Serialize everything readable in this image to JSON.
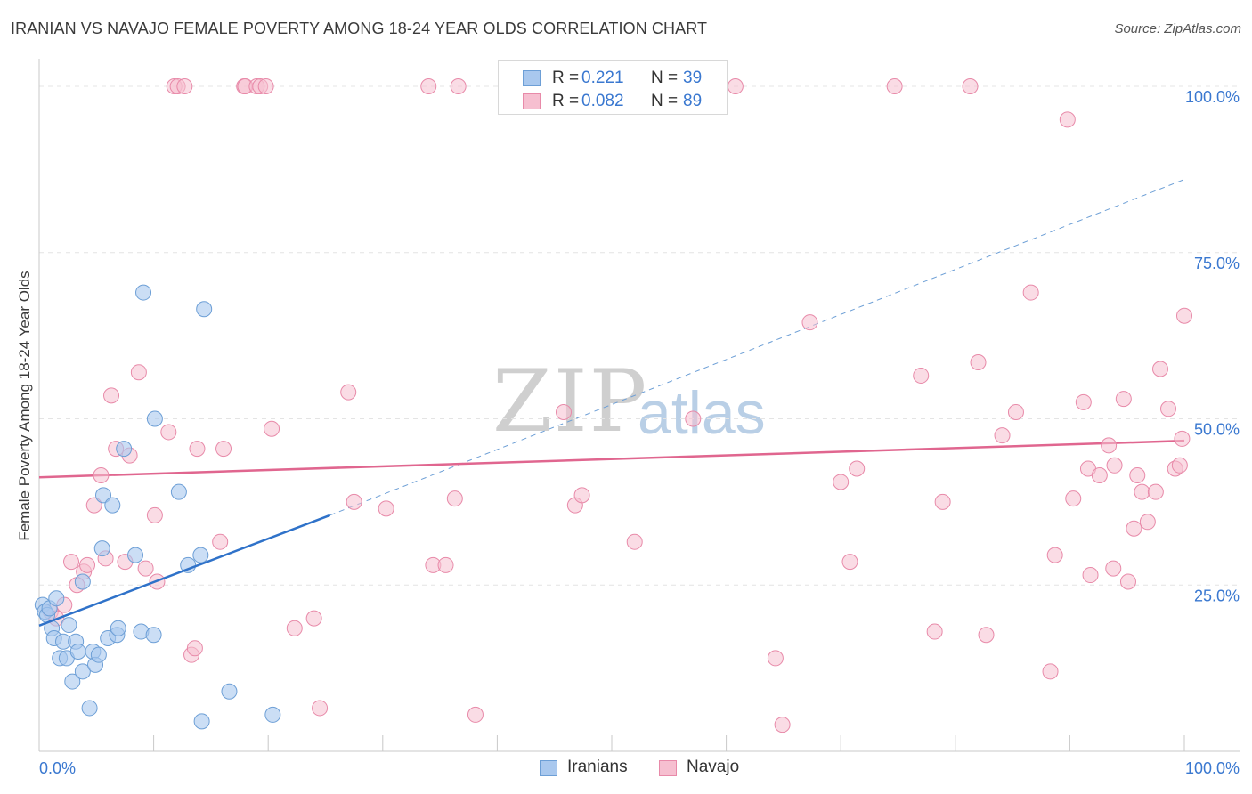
{
  "title": "IRANIAN VS NAVAJO FEMALE POVERTY AMONG 18-24 YEAR OLDS CORRELATION CHART",
  "source": "Source: ZipAtlas.com",
  "watermark": {
    "zip": "ZIP",
    "atlas": "atlas"
  },
  "legend_top": {
    "rows": [
      {
        "r_label": "R =",
        "r_value": "0.221",
        "n_label": "N =",
        "n_value": "39"
      },
      {
        "r_label": "R =",
        "r_value": "0.082",
        "n_label": "N =",
        "n_value": "89"
      }
    ]
  },
  "legend_bottom": {
    "items": [
      "Iranians",
      "Navajo"
    ]
  },
  "colors": {
    "iranian_fill": "#a9c8ee",
    "iranian_stroke": "#6d9fd6",
    "iranian_line": "#2f72c9",
    "navajo_fill": "#f6bfd0",
    "navajo_stroke": "#e88aa9",
    "navajo_line": "#e0668f",
    "value_text": "#3a78d0",
    "grid": "#e4e4e4"
  },
  "chart_data": {
    "type": "scatter",
    "title": "IRANIAN VS NAVAJO FEMALE POVERTY AMONG 18-24 YEAR OLDS CORRELATION CHART",
    "xlabel": "",
    "ylabel": "Female Poverty Among 18-24 Year Olds",
    "xlim": [
      0,
      100
    ],
    "ylim": [
      0,
      100
    ],
    "x_tick_labels": [
      "0.0%",
      "100.0%"
    ],
    "y_tick_labels": [
      "25.0%",
      "50.0%",
      "75.0%",
      "100.0%"
    ],
    "y_ticks": [
      25,
      50,
      75,
      100
    ],
    "legend_position": "top-center",
    "series": [
      {
        "name": "Iranians",
        "R": 0.221,
        "N": 39,
        "points": [
          [
            0.3,
            22.0
          ],
          [
            0.5,
            21.0
          ],
          [
            0.7,
            20.5
          ],
          [
            0.9,
            21.5
          ],
          [
            1.1,
            18.5
          ],
          [
            1.3,
            17.0
          ],
          [
            1.5,
            23.0
          ],
          [
            1.8,
            14.0
          ],
          [
            2.1,
            16.5
          ],
          [
            2.4,
            14.0
          ],
          [
            2.6,
            19.0
          ],
          [
            2.9,
            10.5
          ],
          [
            3.2,
            16.5
          ],
          [
            3.4,
            15.0
          ],
          [
            3.8,
            25.5
          ],
          [
            3.8,
            12.0
          ],
          [
            4.4,
            6.5
          ],
          [
            4.7,
            15.0
          ],
          [
            4.9,
            13.0
          ],
          [
            5.2,
            14.5
          ],
          [
            5.5,
            30.5
          ],
          [
            5.6,
            38.5
          ],
          [
            6.0,
            17.0
          ],
          [
            6.4,
            37.0
          ],
          [
            6.8,
            17.5
          ],
          [
            6.9,
            18.5
          ],
          [
            7.4,
            45.5
          ],
          [
            8.4,
            29.5
          ],
          [
            8.9,
            18.0
          ],
          [
            9.1,
            69.0
          ],
          [
            10.0,
            17.5
          ],
          [
            10.1,
            50.0
          ],
          [
            12.2,
            39.0
          ],
          [
            13.0,
            28.0
          ],
          [
            14.1,
            29.5
          ],
          [
            14.2,
            4.5
          ],
          [
            14.4,
            66.5
          ],
          [
            16.6,
            9.0
          ],
          [
            20.4,
            5.5
          ]
        ],
        "trend": {
          "x": [
            0,
            25.4
          ],
          "y": [
            18.9,
            35.5
          ],
          "extended_x": [
            25.4,
            100
          ],
          "extended_y": [
            35.5,
            86.0
          ]
        }
      },
      {
        "name": "Navajo",
        "R": 0.082,
        "N": 89,
        "points": [
          [
            1.0,
            21.0
          ],
          [
            1.5,
            20.0
          ],
          [
            2.2,
            22.0
          ],
          [
            2.8,
            28.5
          ],
          [
            3.3,
            25.0
          ],
          [
            3.9,
            27.0
          ],
          [
            4.2,
            28.0
          ],
          [
            4.8,
            37.0
          ],
          [
            5.4,
            41.5
          ],
          [
            5.8,
            29.0
          ],
          [
            6.3,
            53.5
          ],
          [
            6.7,
            45.5
          ],
          [
            7.5,
            28.5
          ],
          [
            7.9,
            44.5
          ],
          [
            8.7,
            57.0
          ],
          [
            9.3,
            27.5
          ],
          [
            10.1,
            35.5
          ],
          [
            10.3,
            25.5
          ],
          [
            11.3,
            48.0
          ],
          [
            11.8,
            100.0
          ],
          [
            12.1,
            100.0
          ],
          [
            12.7,
            100.0
          ],
          [
            13.3,
            14.5
          ],
          [
            13.6,
            15.5
          ],
          [
            13.8,
            45.5
          ],
          [
            15.8,
            31.5
          ],
          [
            16.1,
            45.5
          ],
          [
            17.9,
            100.0
          ],
          [
            18.0,
            100.0
          ],
          [
            19.0,
            100.0
          ],
          [
            19.3,
            100.0
          ],
          [
            19.8,
            100.0
          ],
          [
            20.3,
            48.5
          ],
          [
            22.3,
            18.5
          ],
          [
            24.0,
            20.0
          ],
          [
            24.5,
            6.5
          ],
          [
            27.0,
            54.0
          ],
          [
            27.5,
            37.5
          ],
          [
            30.3,
            36.5
          ],
          [
            34.0,
            100.0
          ],
          [
            34.4,
            28.0
          ],
          [
            35.5,
            28.0
          ],
          [
            36.3,
            38.0
          ],
          [
            36.6,
            100.0
          ],
          [
            38.1,
            5.5
          ],
          [
            45.8,
            51.0
          ],
          [
            46.8,
            37.0
          ],
          [
            47.4,
            38.5
          ],
          [
            52.0,
            31.5
          ],
          [
            57.1,
            50.0
          ],
          [
            60.8,
            100.0
          ],
          [
            64.3,
            14.0
          ],
          [
            64.9,
            4.0
          ],
          [
            67.3,
            64.5
          ],
          [
            70.0,
            40.5
          ],
          [
            70.8,
            28.5
          ],
          [
            71.4,
            42.5
          ],
          [
            74.7,
            100.0
          ],
          [
            77.0,
            56.5
          ],
          [
            78.2,
            18.0
          ],
          [
            78.9,
            37.5
          ],
          [
            81.3,
            100.0
          ],
          [
            82.0,
            58.5
          ],
          [
            82.7,
            17.5
          ],
          [
            84.1,
            47.5
          ],
          [
            85.3,
            51.0
          ],
          [
            86.6,
            69.0
          ],
          [
            88.3,
            12.0
          ],
          [
            88.7,
            29.5
          ],
          [
            89.8,
            95.0
          ],
          [
            90.3,
            38.0
          ],
          [
            91.2,
            52.5
          ],
          [
            91.6,
            42.5
          ],
          [
            91.8,
            26.5
          ],
          [
            92.6,
            41.5
          ],
          [
            93.4,
            46.0
          ],
          [
            93.8,
            27.5
          ],
          [
            93.9,
            43.0
          ],
          [
            94.7,
            53.0
          ],
          [
            95.1,
            25.5
          ],
          [
            95.6,
            33.5
          ],
          [
            95.9,
            41.5
          ],
          [
            96.3,
            39.0
          ],
          [
            96.8,
            34.5
          ],
          [
            97.5,
            39.0
          ],
          [
            97.9,
            57.5
          ],
          [
            98.6,
            51.5
          ],
          [
            99.2,
            42.5
          ],
          [
            99.6,
            43.0
          ],
          [
            99.8,
            47.0
          ],
          [
            100.0,
            65.5
          ]
        ],
        "trend": {
          "x": [
            0,
            100
          ],
          "y": [
            41.2,
            46.7
          ]
        }
      }
    ]
  },
  "labels": {
    "ylabel": "Female Poverty Among 18-24 Year Olds"
  }
}
